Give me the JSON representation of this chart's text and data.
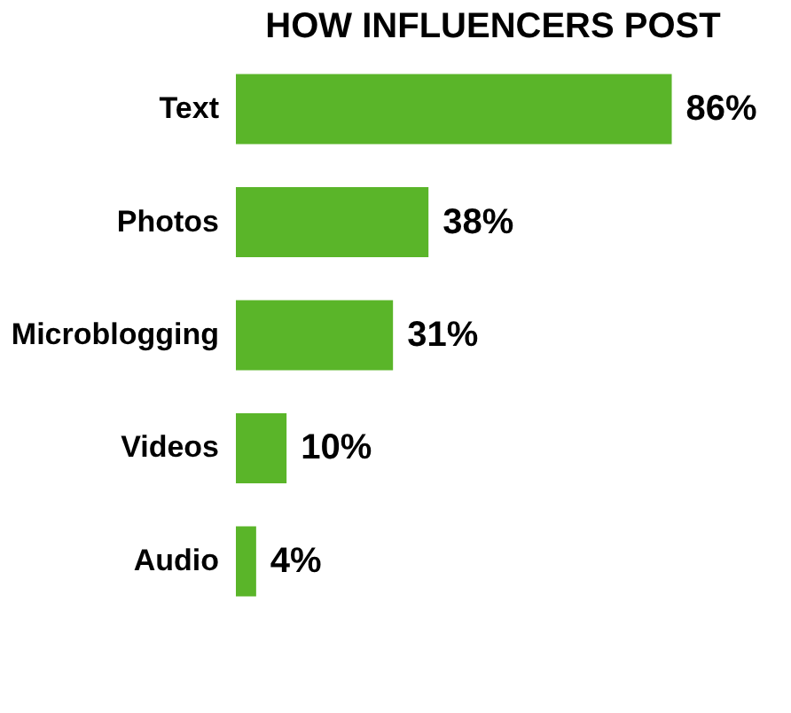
{
  "chart_data": {
    "type": "bar",
    "orientation": "horizontal",
    "title": "HOW INFLUENCERS POST",
    "categories": [
      "Text",
      "Photos",
      "Microblogging",
      "Videos",
      "Audio"
    ],
    "values": [
      86,
      38,
      31,
      10,
      4
    ],
    "color": "#5ab529",
    "data_labels": true,
    "value_labels": [
      "86%",
      "38%",
      "31%",
      "10%",
      "4%"
    ]
  }
}
